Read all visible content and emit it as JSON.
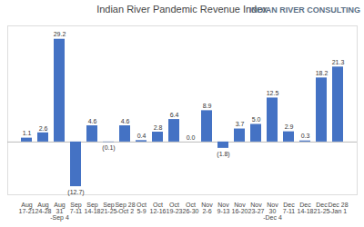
{
  "chart_data": {
    "type": "bar",
    "title": "Indian River Pandemic Revenue Index",
    "annotations": [
      "INDIAN RIVER CONSULTING"
    ],
    "categories": [
      "Aug\n17-21",
      "Aug\n24-28",
      "Aug\n31\n-Sep 4",
      "Sep\n7-11",
      "Sep\n14-18",
      "Sep\n21-25",
      "Sep 28\n-Oct 2",
      "Oct\n5-9",
      "Oct\n12-16",
      "Oct\n19-23",
      "Oct\n26-30",
      "Nov\n2-6",
      "Nov\n9-13",
      "Nov\n16-20",
      "Nov\n23-27",
      "Nov\n30\n-Dec 4",
      "Dec\n7-11",
      "Dec\n14-18",
      "Dec\n21-25",
      "Dec 28\n-Jan 1"
    ],
    "values": [
      1.1,
      2.6,
      29.2,
      -12.7,
      4.6,
      -0.1,
      4.6,
      0.4,
      2.8,
      6.4,
      0.0,
      8.9,
      -1.8,
      3.7,
      5.0,
      12.5,
      2.9,
      0.3,
      18.2,
      21.3
    ],
    "value_labels": [
      "1.1",
      "2.6",
      "29.2",
      "(12.7)",
      "4.6",
      "(0.1)",
      "4.6",
      "0.4",
      "2.8",
      "6.4",
      "0.0",
      "8.9",
      "(1.8)",
      "3.7",
      "5.0",
      "12.5",
      "2.9",
      "0.3",
      "18.2",
      "21.3"
    ],
    "color": "#4472c4",
    "ylim": [
      -15,
      33
    ],
    "data_labels": true,
    "tick_labels": "x",
    "grid": false
  }
}
